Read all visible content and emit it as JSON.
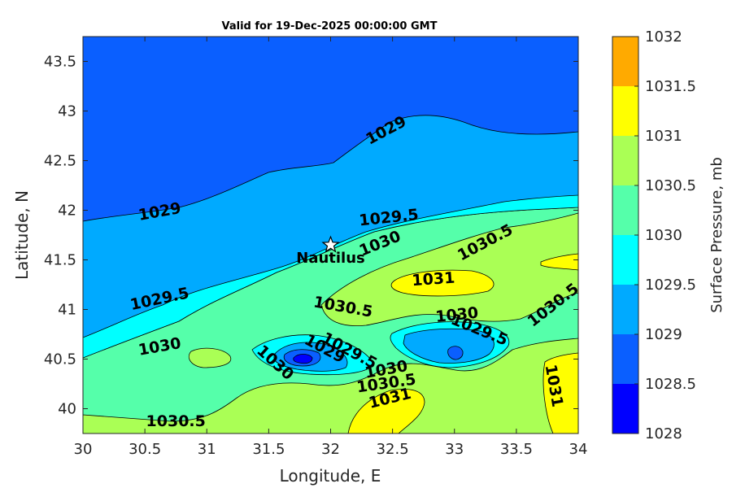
{
  "chart_data": {
    "type": "contour",
    "title": "Valid for 19-Dec-2025 00:00:00 GMT",
    "xlabel": "Longitude, E",
    "ylabel": "Latitude, N",
    "xlim": [
      30,
      34
    ],
    "ylim": [
      39.75,
      43.75
    ],
    "xticks": [
      "30",
      "30.5",
      "31",
      "31.5",
      "32",
      "32.5",
      "33",
      "33.5",
      "34"
    ],
    "xtick_values": [
      30,
      30.5,
      31,
      31.5,
      32,
      32.5,
      33,
      33.5,
      34
    ],
    "yticks": [
      "40",
      "40.5",
      "41",
      "41.5",
      "42",
      "42.5",
      "43",
      "43.5"
    ],
    "ytick_values": [
      40,
      40.5,
      41,
      41.5,
      42,
      42.5,
      43,
      43.5
    ],
    "colorbar": {
      "label": "Surface Pressure, mb",
      "levels": [
        1028,
        1028.5,
        1029,
        1029.5,
        1030,
        1030.5,
        1031,
        1031.5,
        1032
      ],
      "tick_labels": [
        "1028",
        "1028.5",
        "1029",
        "1029.5",
        "1030",
        "1030.5",
        "1031",
        "1031.5",
        "1032"
      ],
      "colors": [
        "#0000ff",
        "#0a5fff",
        "#00aaff",
        "#00ffff",
        "#55ffaa",
        "#aaff55",
        "#ffff00",
        "#ffaa00",
        "#ff5500"
      ]
    },
    "contour_labels": [
      {
        "text": "1029",
        "lon": 32.45,
        "lat": 42.8,
        "angle": -28
      },
      {
        "text": "1029",
        "lon": 30.62,
        "lat": 41.98,
        "angle": -10
      },
      {
        "text": "1029.5",
        "lon": 32.47,
        "lat": 41.92,
        "angle": -6
      },
      {
        "text": "1030",
        "lon": 32.4,
        "lat": 41.66,
        "angle": -22
      },
      {
        "text": "1030.5",
        "lon": 33.25,
        "lat": 41.67,
        "angle": -28
      },
      {
        "text": "1031",
        "lon": 32.83,
        "lat": 41.3,
        "angle": -4
      },
      {
        "text": "1029.5",
        "lon": 30.62,
        "lat": 41.1,
        "angle": -12
      },
      {
        "text": "1030.5",
        "lon": 32.1,
        "lat": 41.02,
        "angle": 10
      },
      {
        "text": "1030",
        "lon": 33.02,
        "lat": 40.94,
        "angle": -6
      },
      {
        "text": "1029.5",
        "lon": 33.2,
        "lat": 40.79,
        "angle": 22
      },
      {
        "text": "1030.5",
        "lon": 33.8,
        "lat": 41.04,
        "angle": -38
      },
      {
        "text": "1030",
        "lon": 30.62,
        "lat": 40.62,
        "angle": -10
      },
      {
        "text": "1029.5",
        "lon": 32.15,
        "lat": 40.58,
        "angle": 28
      },
      {
        "text": "1029",
        "lon": 31.95,
        "lat": 40.6,
        "angle": 28
      },
      {
        "text": "1030",
        "lon": 31.55,
        "lat": 40.46,
        "angle": 42
      },
      {
        "text": "1030",
        "lon": 32.45,
        "lat": 40.39,
        "angle": -10
      },
      {
        "text": "1030.5",
        "lon": 32.45,
        "lat": 40.25,
        "angle": -8
      },
      {
        "text": "1031",
        "lon": 32.48,
        "lat": 40.1,
        "angle": -14
      },
      {
        "text": "1031",
        "lon": 33.8,
        "lat": 40.23,
        "angle": 80
      },
      {
        "text": "1030.5",
        "lon": 30.75,
        "lat": 39.87,
        "angle": 0
      }
    ],
    "marker": {
      "name": "Nautilus",
      "lon": 32.0,
      "lat": 41.65
    }
  }
}
